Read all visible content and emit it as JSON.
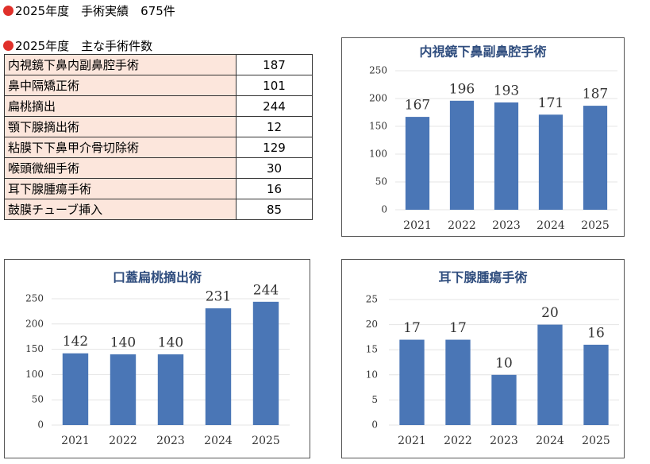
{
  "heading": "2025年度　手術実績　675件",
  "subheading": "2025年度　主な手術件数",
  "table": {
    "rows": [
      [
        "内視鏡下鼻内副鼻腔手術",
        "187"
      ],
      [
        "鼻中隔矯正術",
        "101"
      ],
      [
        "扁桃摘出",
        "244"
      ],
      [
        "顎下腺摘出術",
        "12"
      ],
      [
        "粘膜下下鼻甲介骨切除術",
        "129"
      ],
      [
        "喉頭微細手術",
        "30"
      ],
      [
        "耳下腺腫瘍手術",
        "16"
      ],
      [
        "鼓膜チューブ挿入",
        "85"
      ]
    ]
  },
  "chart_data": [
    {
      "type": "bar",
      "title": "内視鏡下鼻副鼻腔手術",
      "categories": [
        "2021",
        "2022",
        "2023",
        "2024",
        "2025"
      ],
      "values": [
        167,
        196,
        193,
        171,
        187
      ],
      "color": "#4a76b6",
      "ylim": [
        0,
        250
      ],
      "yticks": [
        0,
        50,
        100,
        150,
        200,
        250
      ],
      "grid": true
    },
    {
      "type": "bar",
      "title": "口蓋扁桃摘出術",
      "categories": [
        "2021",
        "2022",
        "2023",
        "2024",
        "2025"
      ],
      "values": [
        142,
        140,
        140,
        231,
        244
      ],
      "color": "#4a76b6",
      "ylim": [
        0,
        250
      ],
      "yticks": [
        0,
        50,
        100,
        150,
        200,
        250
      ],
      "grid": true
    },
    {
      "type": "bar",
      "title": "耳下腺腫瘍手術",
      "categories": [
        "2021",
        "2022",
        "2023",
        "2024",
        "2025"
      ],
      "values": [
        17,
        17,
        10,
        20,
        16
      ],
      "color": "#4a76b6",
      "ylim": [
        0,
        25
      ],
      "yticks": [
        0,
        5,
        10,
        15,
        20,
        25
      ],
      "grid": true
    }
  ]
}
